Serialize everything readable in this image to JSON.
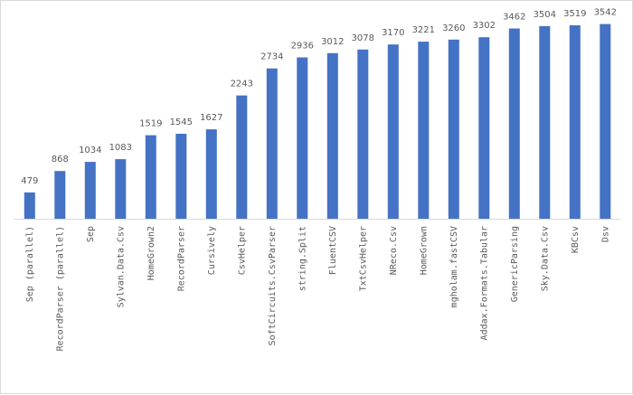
{
  "chart_data": {
    "type": "bar",
    "title": "",
    "xlabel": "",
    "ylabel": "",
    "ylim": [
      0,
      3700
    ],
    "grid": false,
    "legend": "none",
    "bar_color": "#4472c4",
    "label_color": "#595959",
    "categories": [
      "Sep (parallel)",
      "RecordParser (parallel)",
      "Sep",
      "Sylvan.Data.Csv",
      "HomeGrown2",
      "RecordParser",
      "Cursively",
      "CsvHelper",
      "SoftCircuits.CsvParser",
      "string.Split",
      "FluentCSV",
      "TxtCsvHelper",
      "NReco.Csv",
      "HomeGrown",
      "mgholam.fastCSV",
      "Addax.Formats.Tabular",
      "GenericParsing",
      "Sky.Data.Csv",
      "KBCsv",
      "Dsv"
    ],
    "values": [
      479,
      868,
      1034,
      1083,
      1519,
      1545,
      1627,
      2243,
      2734,
      2936,
      3012,
      3078,
      3170,
      3221,
      3260,
      3302,
      3462,
      3504,
      3519,
      3542
    ]
  }
}
